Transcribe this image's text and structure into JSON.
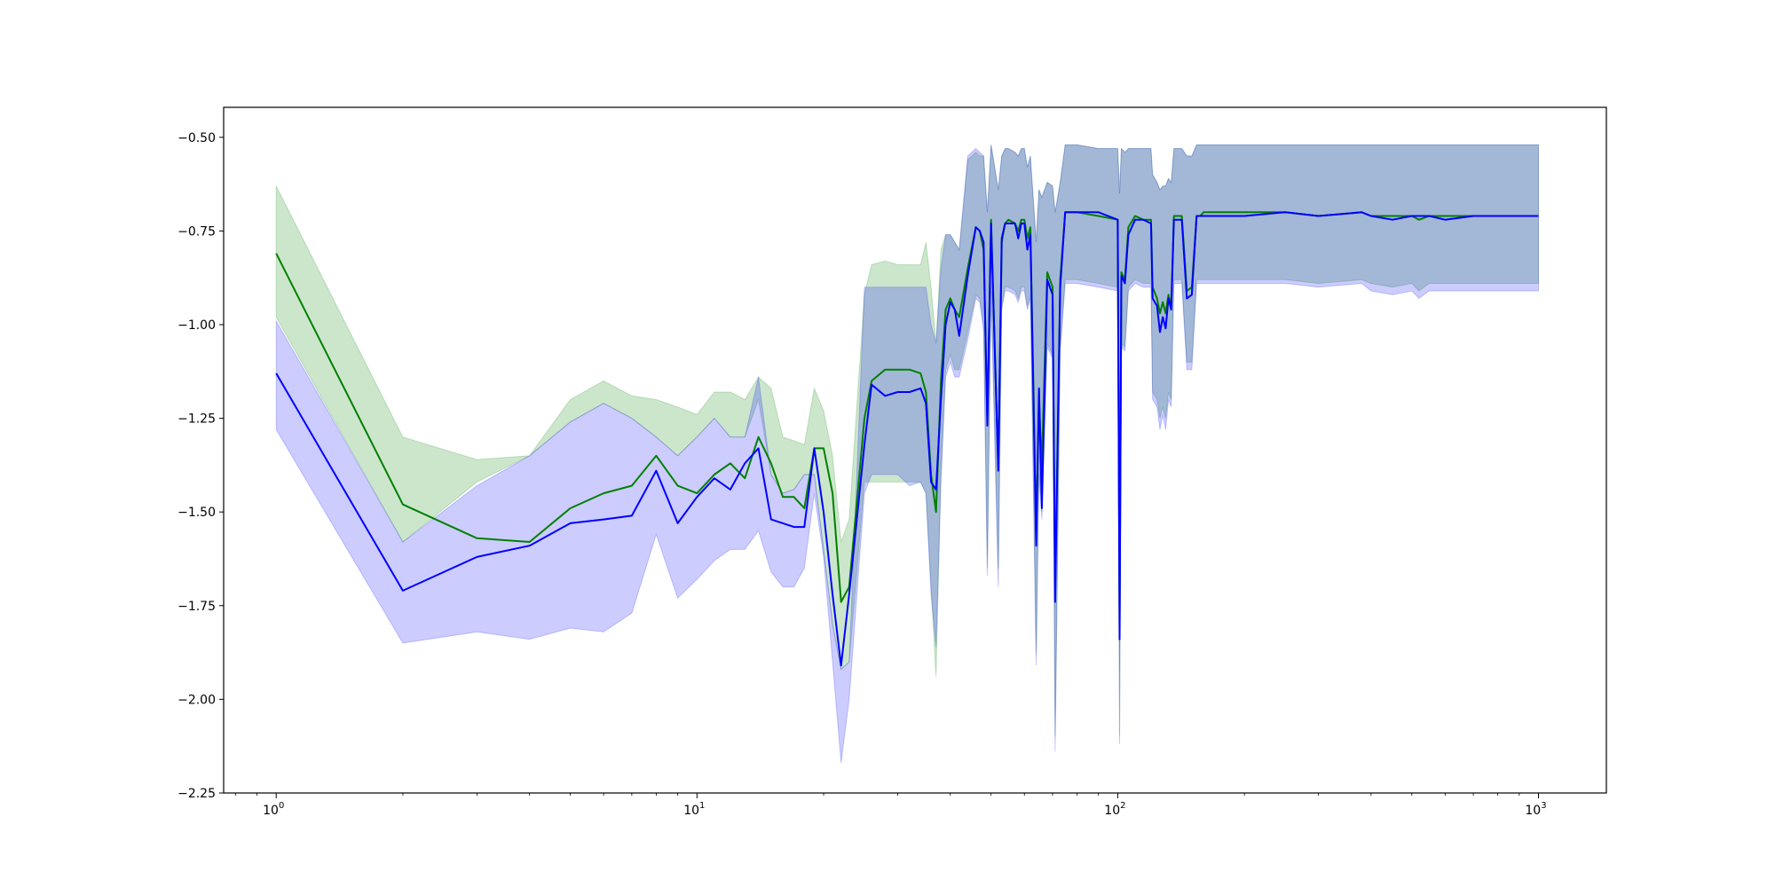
{
  "chart_data": {
    "type": "line",
    "title": "",
    "xlabel": "",
    "ylabel": "",
    "xscale": "log",
    "xlim": [
      0.75,
      1450
    ],
    "ylim": [
      -2.25,
      -0.42
    ],
    "x_ticks": [
      {
        "value": 1,
        "base": "10",
        "exp": "0"
      },
      {
        "value": 10,
        "base": "10",
        "exp": "1"
      },
      {
        "value": 100,
        "base": "10",
        "exp": "2"
      },
      {
        "value": 1000,
        "base": "10",
        "exp": "3"
      }
    ],
    "y_ticks": [
      {
        "value": -0.5,
        "label": "−0.50"
      },
      {
        "value": -0.75,
        "label": "−0.75"
      },
      {
        "value": -1.0,
        "label": "−1.00"
      },
      {
        "value": -1.25,
        "label": "−1.25"
      },
      {
        "value": -1.5,
        "label": "−1.50"
      },
      {
        "value": -1.75,
        "label": "−1.75"
      },
      {
        "value": -2.0,
        "label": "−2.00"
      },
      {
        "value": -2.25,
        "label": "−2.25"
      }
    ],
    "grid": false,
    "legend": "none",
    "series": [
      {
        "color": "#008000",
        "band_color": "#008000",
        "band_opacity": 0.2,
        "x": [
          1,
          2,
          3,
          4,
          5,
          6,
          7,
          8,
          9,
          10,
          11,
          12,
          13,
          14,
          15,
          16,
          17,
          18,
          19,
          20,
          21,
          22,
          23,
          25,
          26,
          28,
          30,
          32,
          34,
          35,
          36,
          37,
          38,
          39,
          40,
          41,
          42,
          44,
          46,
          47,
          48,
          49,
          50,
          52,
          53,
          54,
          55,
          57,
          58,
          59,
          60,
          61,
          62,
          64,
          65,
          66,
          68,
          70,
          71,
          73,
          75,
          80,
          90,
          100,
          101,
          102,
          104,
          106,
          110,
          115,
          120,
          121,
          124,
          126,
          128,
          130,
          132,
          134,
          136,
          140,
          142,
          146,
          150,
          154,
          157,
          160,
          165,
          200,
          250,
          300,
          380,
          400,
          450,
          500,
          520,
          550,
          600,
          700,
          800,
          900,
          950,
          1000
        ],
        "y": [
          -0.81,
          -1.48,
          -1.57,
          -1.58,
          -1.49,
          -1.45,
          -1.43,
          -1.35,
          -1.43,
          -1.45,
          -1.4,
          -1.37,
          -1.41,
          -1.3,
          -1.37,
          -1.46,
          -1.46,
          -1.49,
          -1.33,
          -1.33,
          -1.45,
          -1.74,
          -1.7,
          -1.25,
          -1.15,
          -1.12,
          -1.12,
          -1.12,
          -1.13,
          -1.18,
          -1.4,
          -1.5,
          -1.15,
          -0.96,
          -0.93,
          -0.96,
          -0.98,
          -0.85,
          -0.74,
          -0.75,
          -0.8,
          -1.25,
          -0.72,
          -1.38,
          -0.78,
          -0.73,
          -0.72,
          -0.73,
          -0.75,
          -0.72,
          -0.72,
          -0.77,
          -0.74,
          -1.55,
          -1.2,
          -1.38,
          -0.86,
          -0.9,
          -1.7,
          -0.88,
          -0.7,
          -0.7,
          -0.71,
          -0.72,
          -1.8,
          -0.86,
          -0.88,
          -0.74,
          -0.71,
          -0.72,
          -0.72,
          -0.9,
          -0.93,
          -0.97,
          -0.94,
          -0.97,
          -0.92,
          -0.95,
          -0.71,
          -0.71,
          -0.71,
          -0.91,
          -0.9,
          -0.71,
          -0.71,
          -0.7,
          -0.7,
          -0.7,
          -0.7,
          -0.71,
          -0.7,
          -0.71,
          -0.71,
          -0.71,
          -0.72,
          -0.71,
          -0.71,
          -0.71,
          -0.71,
          -0.71,
          -0.71,
          -0.71
        ],
        "upper": [
          -0.63,
          -1.3,
          -1.36,
          -1.35,
          -1.2,
          -1.15,
          -1.19,
          -1.2,
          -1.22,
          -1.24,
          -1.18,
          -1.18,
          -1.2,
          -1.14,
          -1.17,
          -1.3,
          -1.31,
          -1.32,
          -1.17,
          -1.23,
          -1.35,
          -1.58,
          -1.52,
          -0.92,
          -0.84,
          -0.83,
          -0.84,
          -0.84,
          -0.84,
          -0.78,
          -0.9,
          -1.05,
          -0.8,
          -0.76,
          -0.76,
          -0.78,
          -0.8,
          -0.56,
          -0.54,
          -0.55,
          -0.55,
          -0.7,
          -0.52,
          -0.64,
          -0.55,
          -0.53,
          -0.53,
          -0.54,
          -0.55,
          -0.53,
          -0.53,
          -0.58,
          -0.55,
          -0.78,
          -0.64,
          -0.66,
          -0.62,
          -0.63,
          -0.7,
          -0.62,
          -0.52,
          -0.52,
          -0.53,
          -0.53,
          -0.65,
          -0.53,
          -0.54,
          -0.53,
          -0.53,
          -0.53,
          -0.53,
          -0.6,
          -0.62,
          -0.64,
          -0.63,
          -0.63,
          -0.61,
          -0.62,
          -0.53,
          -0.53,
          -0.53,
          -0.55,
          -0.55,
          -0.52,
          -0.52,
          -0.52,
          -0.52,
          -0.52,
          -0.52,
          -0.52,
          -0.52,
          -0.52,
          -0.52,
          -0.52,
          -0.52,
          -0.52,
          -0.52,
          -0.52,
          -0.52,
          -0.52,
          -0.52,
          -0.52
        ],
        "lower": [
          -0.98,
          -1.58,
          -1.42,
          -1.35,
          -1.26,
          -1.21,
          -1.25,
          -1.3,
          -1.35,
          -1.3,
          -1.25,
          -1.3,
          -1.3,
          -1.2,
          -1.4,
          -1.45,
          -1.44,
          -1.4,
          -1.4,
          -1.6,
          -1.8,
          -1.92,
          -1.9,
          -1.42,
          -1.42,
          -1.42,
          -1.42,
          -1.42,
          -1.42,
          -1.45,
          -1.7,
          -1.94,
          -1.4,
          -1.12,
          -1.08,
          -1.12,
          -1.12,
          -1.02,
          -0.92,
          -0.93,
          -1.0,
          -1.65,
          -0.9,
          -1.65,
          -0.95,
          -0.9,
          -0.9,
          -0.91,
          -0.93,
          -0.9,
          -0.9,
          -0.95,
          -0.92,
          -1.88,
          -1.38,
          -1.5,
          -1.05,
          -1.08,
          -2.1,
          -1.06,
          -0.88,
          -0.88,
          -0.89,
          -0.9,
          -2.1,
          -1.05,
          -1.06,
          -0.9,
          -0.88,
          -0.89,
          -0.89,
          -1.18,
          -1.2,
          -1.25,
          -1.22,
          -1.25,
          -1.18,
          -1.2,
          -0.88,
          -0.88,
          -0.88,
          -1.1,
          -1.1,
          -0.88,
          -0.88,
          -0.88,
          -0.88,
          -0.88,
          -0.88,
          -0.89,
          -0.88,
          -0.89,
          -0.9,
          -0.89,
          -0.91,
          -0.89,
          -0.89,
          -0.89,
          -0.89,
          -0.89,
          -0.89,
          -0.89
        ]
      },
      {
        "color": "#0000ff",
        "band_color": "#0000ff",
        "band_opacity": 0.2,
        "x": [
          1,
          2,
          3,
          4,
          5,
          6,
          7,
          8,
          9,
          10,
          11,
          12,
          13,
          14,
          15,
          16,
          17,
          18,
          19,
          20,
          21,
          22,
          23,
          25,
          26,
          28,
          30,
          32,
          34,
          35,
          36,
          37,
          38,
          39,
          40,
          41,
          42,
          44,
          46,
          47,
          48,
          49,
          50,
          52,
          53,
          54,
          55,
          57,
          58,
          59,
          60,
          61,
          62,
          64,
          65,
          66,
          68,
          70,
          71,
          73,
          75,
          80,
          90,
          100,
          101,
          102,
          104,
          106,
          110,
          115,
          120,
          121,
          124,
          126,
          128,
          130,
          132,
          134,
          136,
          140,
          142,
          146,
          150,
          154,
          157,
          160,
          165,
          200,
          250,
          300,
          380,
          400,
          450,
          500,
          520,
          550,
          600,
          700,
          800,
          900,
          950,
          1000
        ],
        "y": [
          -1.13,
          -1.71,
          -1.62,
          -1.59,
          -1.53,
          -1.52,
          -1.51,
          -1.39,
          -1.53,
          -1.46,
          -1.41,
          -1.44,
          -1.37,
          -1.33,
          -1.52,
          -1.53,
          -1.54,
          -1.54,
          -1.33,
          -1.5,
          -1.72,
          -1.91,
          -1.72,
          -1.32,
          -1.16,
          -1.19,
          -1.18,
          -1.18,
          -1.17,
          -1.21,
          -1.42,
          -1.44,
          -1.2,
          -1.0,
          -0.94,
          -0.96,
          -1.03,
          -0.87,
          -0.74,
          -0.75,
          -0.78,
          -1.27,
          -0.73,
          -1.39,
          -0.77,
          -0.73,
          -0.73,
          -0.73,
          -0.77,
          -0.73,
          -0.73,
          -0.8,
          -0.76,
          -1.59,
          -1.17,
          -1.49,
          -0.88,
          -0.92,
          -1.74,
          -0.9,
          -0.7,
          -0.7,
          -0.7,
          -0.72,
          -1.84,
          -0.87,
          -0.89,
          -0.76,
          -0.72,
          -0.72,
          -0.73,
          -0.93,
          -0.95,
          -1.02,
          -0.98,
          -1.01,
          -0.93,
          -0.96,
          -0.72,
          -0.72,
          -0.72,
          -0.93,
          -0.92,
          -0.71,
          -0.71,
          -0.71,
          -0.71,
          -0.71,
          -0.7,
          -0.71,
          -0.7,
          -0.71,
          -0.72,
          -0.71,
          -0.71,
          -0.71,
          -0.72,
          -0.71,
          -0.71,
          -0.71,
          -0.71,
          -0.71
        ],
        "upper": [
          -0.99,
          -1.58,
          -1.43,
          -1.35,
          -1.26,
          -1.21,
          -1.25,
          -1.3,
          -1.35,
          -1.3,
          -1.25,
          -1.3,
          -1.3,
          -1.14,
          -1.4,
          -1.45,
          -1.44,
          -1.4,
          -1.4,
          -1.6,
          -1.8,
          -1.92,
          -1.9,
          -0.9,
          -0.9,
          -0.9,
          -0.9,
          -0.9,
          -0.9,
          -0.9,
          -1.0,
          -1.05,
          -0.85,
          -0.76,
          -0.76,
          -0.78,
          -0.8,
          -0.55,
          -0.53,
          -0.54,
          -0.55,
          -0.7,
          -0.52,
          -0.64,
          -0.55,
          -0.53,
          -0.53,
          -0.54,
          -0.55,
          -0.53,
          -0.53,
          -0.58,
          -0.55,
          -0.78,
          -0.64,
          -0.66,
          -0.62,
          -0.63,
          -0.7,
          -0.62,
          -0.52,
          -0.52,
          -0.53,
          -0.53,
          -0.65,
          -0.53,
          -0.54,
          -0.53,
          -0.53,
          -0.53,
          -0.53,
          -0.6,
          -0.62,
          -0.64,
          -0.63,
          -0.63,
          -0.61,
          -0.62,
          -0.53,
          -0.53,
          -0.53,
          -0.55,
          -0.55,
          -0.52,
          -0.52,
          -0.52,
          -0.52,
          -0.52,
          -0.52,
          -0.52,
          -0.52,
          -0.52,
          -0.52,
          -0.52,
          -0.52,
          -0.52,
          -0.52,
          -0.52,
          -0.52,
          -0.52,
          -0.52,
          -0.52
        ],
        "lower": [
          -1.28,
          -1.85,
          -1.82,
          -1.84,
          -1.81,
          -1.82,
          -1.77,
          -1.56,
          -1.73,
          -1.68,
          -1.63,
          -1.6,
          -1.6,
          -1.55,
          -1.66,
          -1.7,
          -1.7,
          -1.65,
          -1.45,
          -1.62,
          -1.9,
          -2.17,
          -2.0,
          -1.45,
          -1.4,
          -1.4,
          -1.4,
          -1.43,
          -1.42,
          -1.45,
          -1.72,
          -1.86,
          -1.42,
          -1.14,
          -1.1,
          -1.14,
          -1.14,
          -1.04,
          -0.93,
          -0.94,
          -1.02,
          -1.67,
          -0.91,
          -1.7,
          -0.96,
          -0.91,
          -0.91,
          -0.92,
          -0.94,
          -0.91,
          -0.91,
          -0.96,
          -0.93,
          -1.91,
          -1.4,
          -1.52,
          -1.06,
          -1.09,
          -2.14,
          -1.07,
          -0.89,
          -0.89,
          -0.9,
          -0.91,
          -2.12,
          -1.06,
          -1.07,
          -0.91,
          -0.89,
          -0.9,
          -0.9,
          -1.2,
          -1.22,
          -1.28,
          -1.24,
          -1.28,
          -1.2,
          -1.22,
          -0.89,
          -0.89,
          -0.89,
          -1.12,
          -1.12,
          -0.89,
          -0.89,
          -0.89,
          -0.89,
          -0.89,
          -0.89,
          -0.9,
          -0.89,
          -0.91,
          -0.92,
          -0.91,
          -0.93,
          -0.91,
          -0.91,
          -0.91,
          -0.91,
          -0.91,
          -0.91,
          -0.91
        ]
      }
    ]
  }
}
